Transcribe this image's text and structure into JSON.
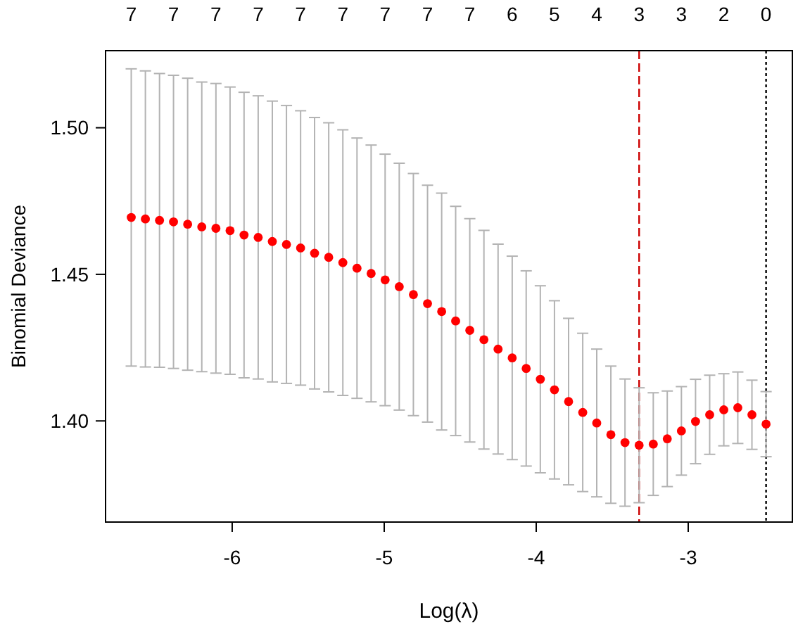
{
  "chart_data": {
    "type": "scatter",
    "xlabel": "Log(λ)",
    "ylabel": "Binomial Deviance",
    "xlim": [
      -6.833,
      -2.315
    ],
    "xticks": [
      -6,
      -5,
      -4,
      -3
    ],
    "ylim": [
      1.3655,
      1.5263
    ],
    "yticks": [
      {
        "value": 1.4,
        "label": "1.40"
      },
      {
        "value": 1.45,
        "label": "1.45"
      },
      {
        "value": 1.5,
        "label": "1.50"
      }
    ],
    "annotations": [
      "7",
      "7",
      "7",
      "7",
      "7",
      "7",
      "7",
      "7",
      "7",
      "6",
      "5",
      "4",
      "3",
      "3",
      "2",
      "0"
    ],
    "marker": "circle",
    "series": [
      {
        "color": "#ff0000",
        "x": [
          -6.664,
          -6.571,
          -6.478,
          -6.386,
          -6.293,
          -6.2,
          -6.107,
          -6.014,
          -5.922,
          -5.829,
          -5.736,
          -5.643,
          -5.55,
          -5.458,
          -5.365,
          -5.272,
          -5.179,
          -5.086,
          -4.994,
          -4.901,
          -4.808,
          -4.715,
          -4.622,
          -4.53,
          -4.437,
          -4.344,
          -4.251,
          -4.158,
          -4.066,
          -3.973,
          -3.88,
          -3.787,
          -3.694,
          -3.602,
          -3.509,
          -3.416,
          -3.323,
          -3.23,
          -3.138,
          -3.045,
          -2.952,
          -2.859,
          -2.766,
          -2.674,
          -2.581,
          -2.488
        ],
        "values": [
          1.4694,
          1.4689,
          1.4684,
          1.4679,
          1.4671,
          1.4662,
          1.4657,
          1.4649,
          1.4634,
          1.4626,
          1.4612,
          1.4602,
          1.459,
          1.4572,
          1.4558,
          1.454,
          1.4521,
          1.4503,
          1.4481,
          1.4458,
          1.4431,
          1.44,
          1.4373,
          1.4341,
          1.4309,
          1.4277,
          1.4245,
          1.4215,
          1.4179,
          1.4142,
          1.4106,
          1.4066,
          1.4029,
          1.3993,
          1.3953,
          1.3926,
          1.3917,
          1.3921,
          1.3939,
          1.3966,
          1.3998,
          1.4021,
          1.4038,
          1.4045,
          1.4021,
          1.3989
        ],
        "errors": [
          0.0507,
          0.0505,
          0.0501,
          0.05,
          0.0498,
          0.0494,
          0.0494,
          0.049,
          0.0487,
          0.0483,
          0.0479,
          0.0474,
          0.0468,
          0.0463,
          0.0459,
          0.0453,
          0.0444,
          0.0438,
          0.0429,
          0.0421,
          0.0413,
          0.0404,
          0.0404,
          0.0391,
          0.0381,
          0.0373,
          0.0358,
          0.0347,
          0.0333,
          0.0319,
          0.0304,
          0.0284,
          0.027,
          0.0252,
          0.0234,
          0.0217,
          0.0196,
          0.0175,
          0.0163,
          0.0151,
          0.0144,
          0.0135,
          0.0123,
          0.0122,
          0.0118,
          0.0111
        ]
      }
    ],
    "ref_lines": [
      {
        "axis": "x",
        "value": -3.323,
        "color": "#cc0000",
        "line_style": "dashed"
      },
      {
        "axis": "x",
        "value": -2.488,
        "color": "#000000",
        "line_style": "dotted"
      }
    ]
  }
}
